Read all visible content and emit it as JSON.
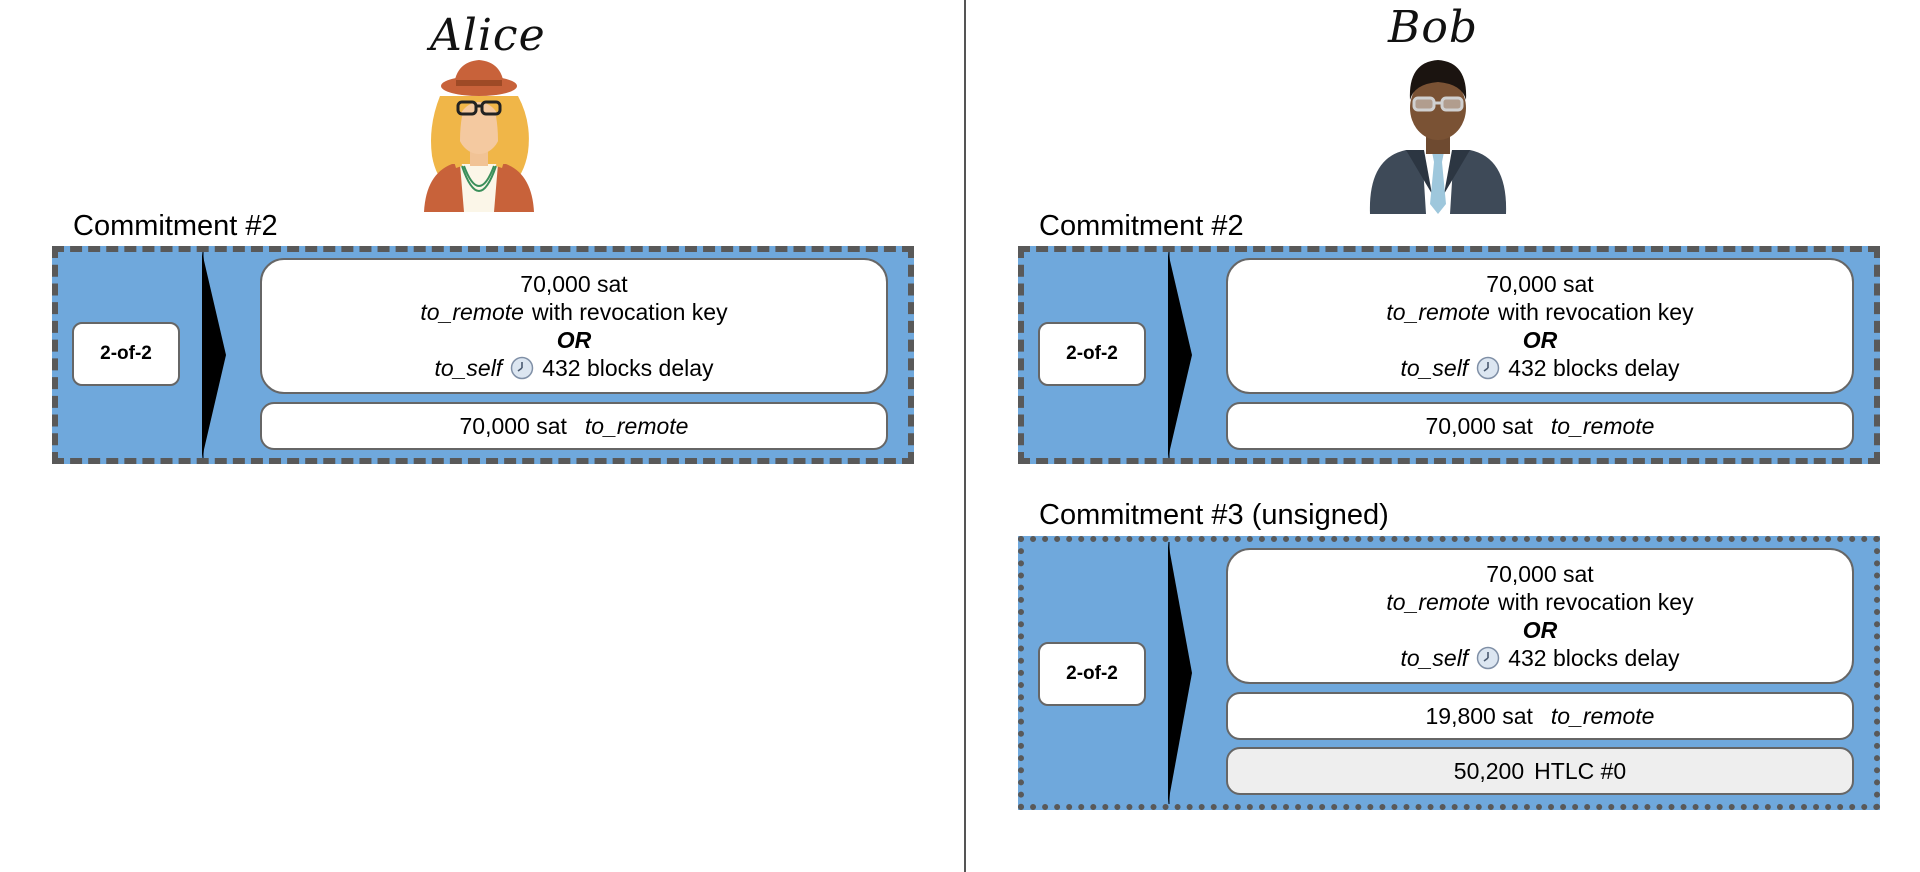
{
  "alice": {
    "name": "Alice"
  },
  "bob": {
    "name": "Bob"
  },
  "labels": {
    "multisig": "2-of-2",
    "revocation_suffix": "with revocation key",
    "or": "OR",
    "delay_suffix": "432 blocks delay",
    "to_remote": "to_remote",
    "to_self": "to_self"
  },
  "alice_commitment": {
    "title": "Commitment #2",
    "revocable_amount": "70,000 sat",
    "remote_amount": "70,000 sat"
  },
  "bob_commitment": {
    "title": "Commitment #2",
    "revocable_amount": "70,000 sat",
    "remote_amount": "70,000 sat"
  },
  "bob_commitment_new": {
    "title": "Commitment #3 (unsigned)",
    "revocable_amount": "70,000 sat",
    "remote_amount": "19,800 sat",
    "htlc_amount": "50,200",
    "htlc_label": "HTLC #0"
  },
  "colors": {
    "panel": "#6fa8dc",
    "border": "#595959",
    "htlc_fill": "#eeeeee"
  },
  "icons": [
    "alice-avatar",
    "bob-avatar",
    "clock-icon",
    "arrow-icon"
  ]
}
